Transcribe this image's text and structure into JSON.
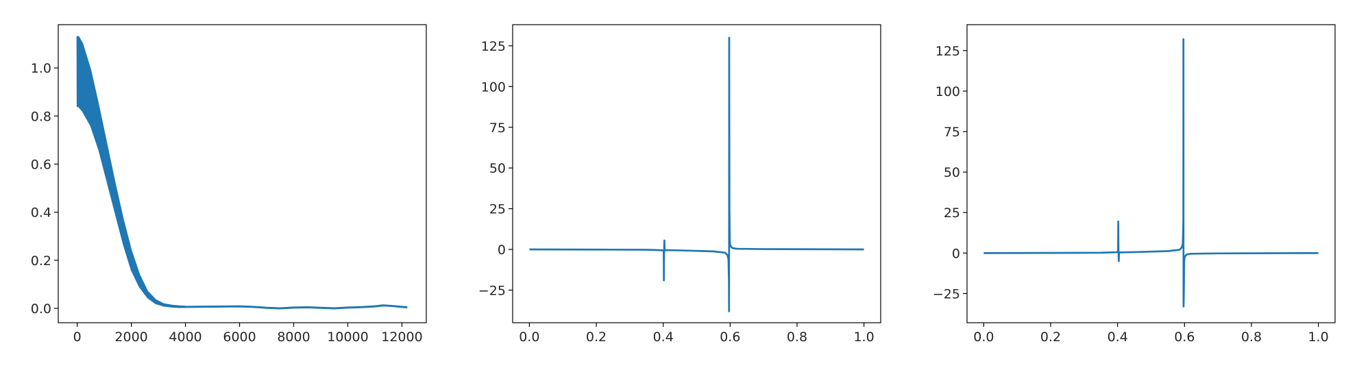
{
  "figure": {
    "background": "#ffffff",
    "series_color": "#1f77b4",
    "axis_color": "#000000"
  },
  "chart_data": [
    {
      "type": "line",
      "title": "",
      "xlabel": "",
      "ylabel": "",
      "xlim": [
        -700,
        12900
      ],
      "ylim": [
        -0.06,
        1.18
      ],
      "xticks": [
        0,
        2000,
        4000,
        6000,
        8000,
        10000,
        12000
      ],
      "xtick_labels": [
        "0",
        "2000",
        "4000",
        "6000",
        "8000",
        "10000",
        "12000"
      ],
      "yticks": [
        0.0,
        0.2,
        0.4,
        0.6,
        0.8,
        1.0
      ],
      "ytick_labels": [
        "0.0",
        "0.2",
        "0.4",
        "0.6",
        "0.8",
        "1.0"
      ],
      "grid": false,
      "series": [
        {
          "style": "dense oscillation band",
          "envelope_upper": {
            "x": [
              0,
              50,
              200,
              500,
              800,
              1100,
              1400,
              1700,
              2000,
              2300,
              2600,
              2900,
              3200,
              3500,
              3800,
              4000
            ],
            "y": [
              1.13,
              1.13,
              1.1,
              0.99,
              0.84,
              0.68,
              0.52,
              0.37,
              0.24,
              0.14,
              0.07,
              0.035,
              0.018,
              0.012,
              0.009,
              0.008
            ]
          },
          "envelope_lower": {
            "x": [
              0,
              50,
              200,
              500,
              800,
              1100,
              1400,
              1700,
              2000,
              2300,
              2600,
              2900,
              3200,
              3500,
              3800,
              4000
            ],
            "y": [
              0.84,
              0.84,
              0.82,
              0.76,
              0.66,
              0.53,
              0.4,
              0.27,
              0.16,
              0.09,
              0.045,
              0.02,
              0.01,
              0.006,
              0.004,
              0.004
            ]
          },
          "tail": {
            "x": [
              4000,
              5000,
              6000,
              6500,
              7000,
              7500,
              8000,
              8500,
              9000,
              9500,
              10000,
              10500,
              11000,
              11300,
              11600,
              12000,
              12200
            ],
            "y": [
              0.006,
              0.007,
              0.008,
              0.006,
              0.002,
              0.0,
              0.003,
              0.004,
              0.002,
              0.0,
              0.003,
              0.005,
              0.008,
              0.012,
              0.01,
              0.006,
              0.004
            ]
          }
        }
      ]
    },
    {
      "type": "line",
      "title": "",
      "xlabel": "",
      "ylabel": "",
      "xlim": [
        -0.05,
        1.05
      ],
      "ylim": [
        -45,
        138
      ],
      "xticks": [
        0.0,
        0.2,
        0.4,
        0.6,
        0.8,
        1.0
      ],
      "xtick_labels": [
        "0.0",
        "0.2",
        "0.4",
        "0.6",
        "0.8",
        "1.0"
      ],
      "yticks": [
        -25,
        0,
        25,
        50,
        75,
        100,
        125
      ],
      "ytick_labels": [
        "−25",
        "0",
        "25",
        "50",
        "75",
        "100",
        "125"
      ],
      "grid": false,
      "series": [
        {
          "x": [
            0.0,
            0.2,
            0.35,
            0.398,
            0.4015,
            0.402,
            0.4025,
            0.403,
            0.4035,
            0.404,
            0.4045,
            0.406,
            0.45,
            0.55,
            0.585,
            0.592,
            0.595,
            0.5965,
            0.5968,
            0.597,
            0.5972,
            0.598,
            0.5985,
            0.5987,
            0.5989,
            0.5992,
            0.5995,
            0.6,
            0.603,
            0.608,
            0.62,
            0.7,
            1.0
          ],
          "y": [
            0.0,
            -0.1,
            -0.2,
            -0.5,
            -1.0,
            -19.0,
            -5.0,
            2.0,
            5.5,
            2.0,
            -0.5,
            -0.4,
            -0.6,
            -1.2,
            -2.0,
            -3.5,
            -6.0,
            -20.0,
            -38.0,
            20.0,
            130.0,
            25.0,
            14.0,
            9.0,
            7.0,
            5.0,
            4.0,
            3.0,
            1.5,
            0.8,
            0.4,
            0.2,
            0.0
          ]
        }
      ]
    },
    {
      "type": "line",
      "title": "",
      "xlabel": "",
      "ylabel": "",
      "xlim": [
        -0.05,
        1.05
      ],
      "ylim": [
        -43,
        141
      ],
      "xticks": [
        0.0,
        0.2,
        0.4,
        0.6,
        0.8,
        1.0
      ],
      "xtick_labels": [
        "0.0",
        "0.2",
        "0.4",
        "0.6",
        "0.8",
        "1.0"
      ],
      "yticks": [
        -25,
        0,
        25,
        50,
        75,
        100,
        125
      ],
      "ytick_labels": [
        "−25",
        "0",
        "25",
        "50",
        "75",
        "100",
        "125"
      ],
      "grid": false,
      "series": [
        {
          "x": [
            0.0,
            0.2,
            0.35,
            0.398,
            0.4015,
            0.402,
            0.4025,
            0.403,
            0.4035,
            0.404,
            0.4045,
            0.406,
            0.45,
            0.55,
            0.585,
            0.592,
            0.595,
            0.5965,
            0.5968,
            0.597,
            0.5972,
            0.598,
            0.5985,
            0.5987,
            0.5989,
            0.5992,
            0.5995,
            0.6,
            0.603,
            0.608,
            0.62,
            0.7,
            1.0
          ],
          "y": [
            0.0,
            0.1,
            0.2,
            0.5,
            1.0,
            19.5,
            5.0,
            -2.0,
            -5.0,
            -2.0,
            0.5,
            0.4,
            0.6,
            1.2,
            2.0,
            3.5,
            6.0,
            20.0,
            132.0,
            -20.0,
            -33.0,
            -25.0,
            -14.0,
            -9.0,
            -7.0,
            -5.0,
            -4.0,
            -3.0,
            -1.5,
            -0.8,
            -0.4,
            -0.2,
            0.0
          ]
        }
      ]
    }
  ]
}
